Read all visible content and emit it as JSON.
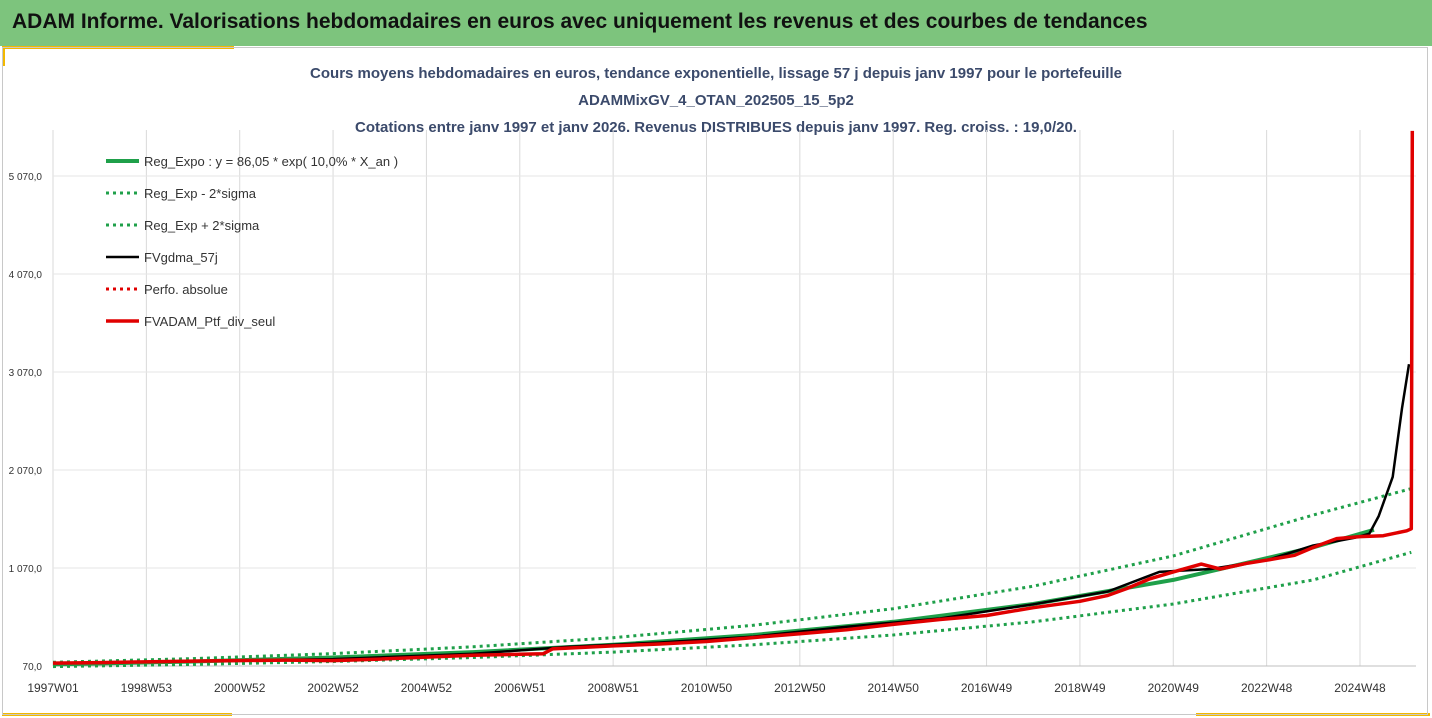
{
  "header": {
    "title": "ADAM Informe. Valorisations hebdomadaires en euros avec uniquement les revenus et des courbes de tendances"
  },
  "colors": {
    "banner": "#7dc47d",
    "accent": "#f2b800",
    "green": "#1fa04a",
    "red": "#e00000",
    "black": "#000000"
  },
  "chart_data": {
    "type": "line",
    "title_lines": [
      "Cours moyens hebdomadaires en euros, tendance exponentielle, lissage 57 j depuis janv 1997 pour le portefeuille",
      "ADAMMixGV_4_OTAN_202505_15_5p2",
      "Cotations entre janv 1997 et janv 2026. Revenus DISTRIBUES depuis janv 1997. Reg. croiss. : 19,0/20."
    ],
    "x_tick_labels": [
      "1997W01",
      "1998W53",
      "2000W52",
      "2002W52",
      "2004W52",
      "2006W51",
      "2008W51",
      "2010W50",
      "2012W50",
      "2014W50",
      "2016W49",
      "2018W49",
      "2020W49",
      "2022W48",
      "2024W48"
    ],
    "x_tick_years": [
      1997,
      1999,
      2001,
      2003,
      2005,
      2007,
      2009,
      2011,
      2013,
      2015,
      2017,
      2019,
      2021,
      2023,
      2025
    ],
    "xlim": [
      1997,
      2026.2
    ],
    "y_tick_labels": [
      "70,0",
      "1 070,0",
      "2 070,0",
      "3 070,0",
      "4 070,0",
      "5 070,0"
    ],
    "y_tick_values": [
      70,
      1070,
      2070,
      3070,
      4070,
      5070
    ],
    "ylim": [
      70,
      5600
    ],
    "grid": "vertical",
    "legend_position": "top-left",
    "series": [
      {
        "name": "Reg_Expo : y = 86,05 * exp( 10,0% *  X_an )",
        "style": "solid-green",
        "points": [
          [
            1997,
            86
          ],
          [
            2000,
            116
          ],
          [
            2003,
            157
          ],
          [
            2006,
            212
          ],
          [
            2009,
            286
          ],
          [
            2012,
            386
          ],
          [
            2015,
            521
          ],
          [
            2018,
            703
          ],
          [
            2021,
            949
          ],
          [
            2024,
            1281
          ],
          [
            2025.3,
            1460
          ]
        ]
      },
      {
        "name": "Reg_Exp - 2*sigma",
        "style": "dotted-green",
        "points": [
          [
            1997,
            64
          ],
          [
            2000,
            86
          ],
          [
            2003,
            116
          ],
          [
            2006,
            157
          ],
          [
            2009,
            212
          ],
          [
            2012,
            286
          ],
          [
            2015,
            386
          ],
          [
            2018,
            521
          ],
          [
            2021,
            703
          ],
          [
            2024,
            949
          ],
          [
            2026.1,
            1230
          ]
        ]
      },
      {
        "name": "Reg_Exp + 2*sigma",
        "style": "dotted-green",
        "points": [
          [
            1997,
            108
          ],
          [
            2000,
            146
          ],
          [
            2003,
            197
          ],
          [
            2006,
            266
          ],
          [
            2009,
            359
          ],
          [
            2012,
            485
          ],
          [
            2015,
            655
          ],
          [
            2018,
            884
          ],
          [
            2021,
            1193
          ],
          [
            2024,
            1611
          ],
          [
            2026.1,
            1880
          ]
        ]
      },
      {
        "name": "FVgdma_57j",
        "style": "solid-black",
        "points": [
          [
            1997,
            100
          ],
          [
            2000,
            120
          ],
          [
            2003,
            140
          ],
          [
            2006,
            195
          ],
          [
            2008,
            265
          ],
          [
            2010,
            310
          ],
          [
            2012,
            370
          ],
          [
            2014,
            470
          ],
          [
            2016,
            555
          ],
          [
            2018,
            700
          ],
          [
            2019.6,
            830
          ],
          [
            2020.7,
            1030
          ],
          [
            2021.8,
            1060
          ],
          [
            2023,
            1150
          ],
          [
            2024,
            1300
          ],
          [
            2024.9,
            1380
          ],
          [
            2025.2,
            1420
          ],
          [
            2025.4,
            1600
          ],
          [
            2025.7,
            2000
          ],
          [
            2025.9,
            2700
          ],
          [
            2026.05,
            3150
          ]
        ]
      },
      {
        "name": "Perfo. absolue",
        "style": "dotted-red",
        "points": []
      },
      {
        "name": "FVADAM_Ptf_div_seul",
        "style": "solid-red",
        "points": [
          [
            1997,
            100
          ],
          [
            1998,
            105
          ],
          [
            2000,
            120
          ],
          [
            2002,
            130
          ],
          [
            2003,
            125
          ],
          [
            2004,
            140
          ],
          [
            2006,
            180
          ],
          [
            2007.5,
            195
          ],
          [
            2007.7,
            245
          ],
          [
            2009,
            275
          ],
          [
            2010,
            295
          ],
          [
            2011,
            320
          ],
          [
            2012,
            360
          ],
          [
            2013,
            400
          ],
          [
            2014,
            440
          ],
          [
            2015,
            495
          ],
          [
            2016,
            545
          ],
          [
            2017,
            585
          ],
          [
            2018,
            665
          ],
          [
            2019,
            730
          ],
          [
            2019.6,
            790
          ],
          [
            2020,
            860
          ],
          [
            2020.5,
            960
          ],
          [
            2021,
            1030
          ],
          [
            2021.6,
            1110
          ],
          [
            2022,
            1060
          ],
          [
            2022.6,
            1120
          ],
          [
            2023,
            1150
          ],
          [
            2023.6,
            1200
          ],
          [
            2024,
            1280
          ],
          [
            2024.5,
            1370
          ],
          [
            2025,
            1390
          ],
          [
            2025.5,
            1400
          ],
          [
            2026,
            1450
          ],
          [
            2026.1,
            1470
          ],
          [
            2026.12,
            5530
          ]
        ]
      }
    ]
  }
}
